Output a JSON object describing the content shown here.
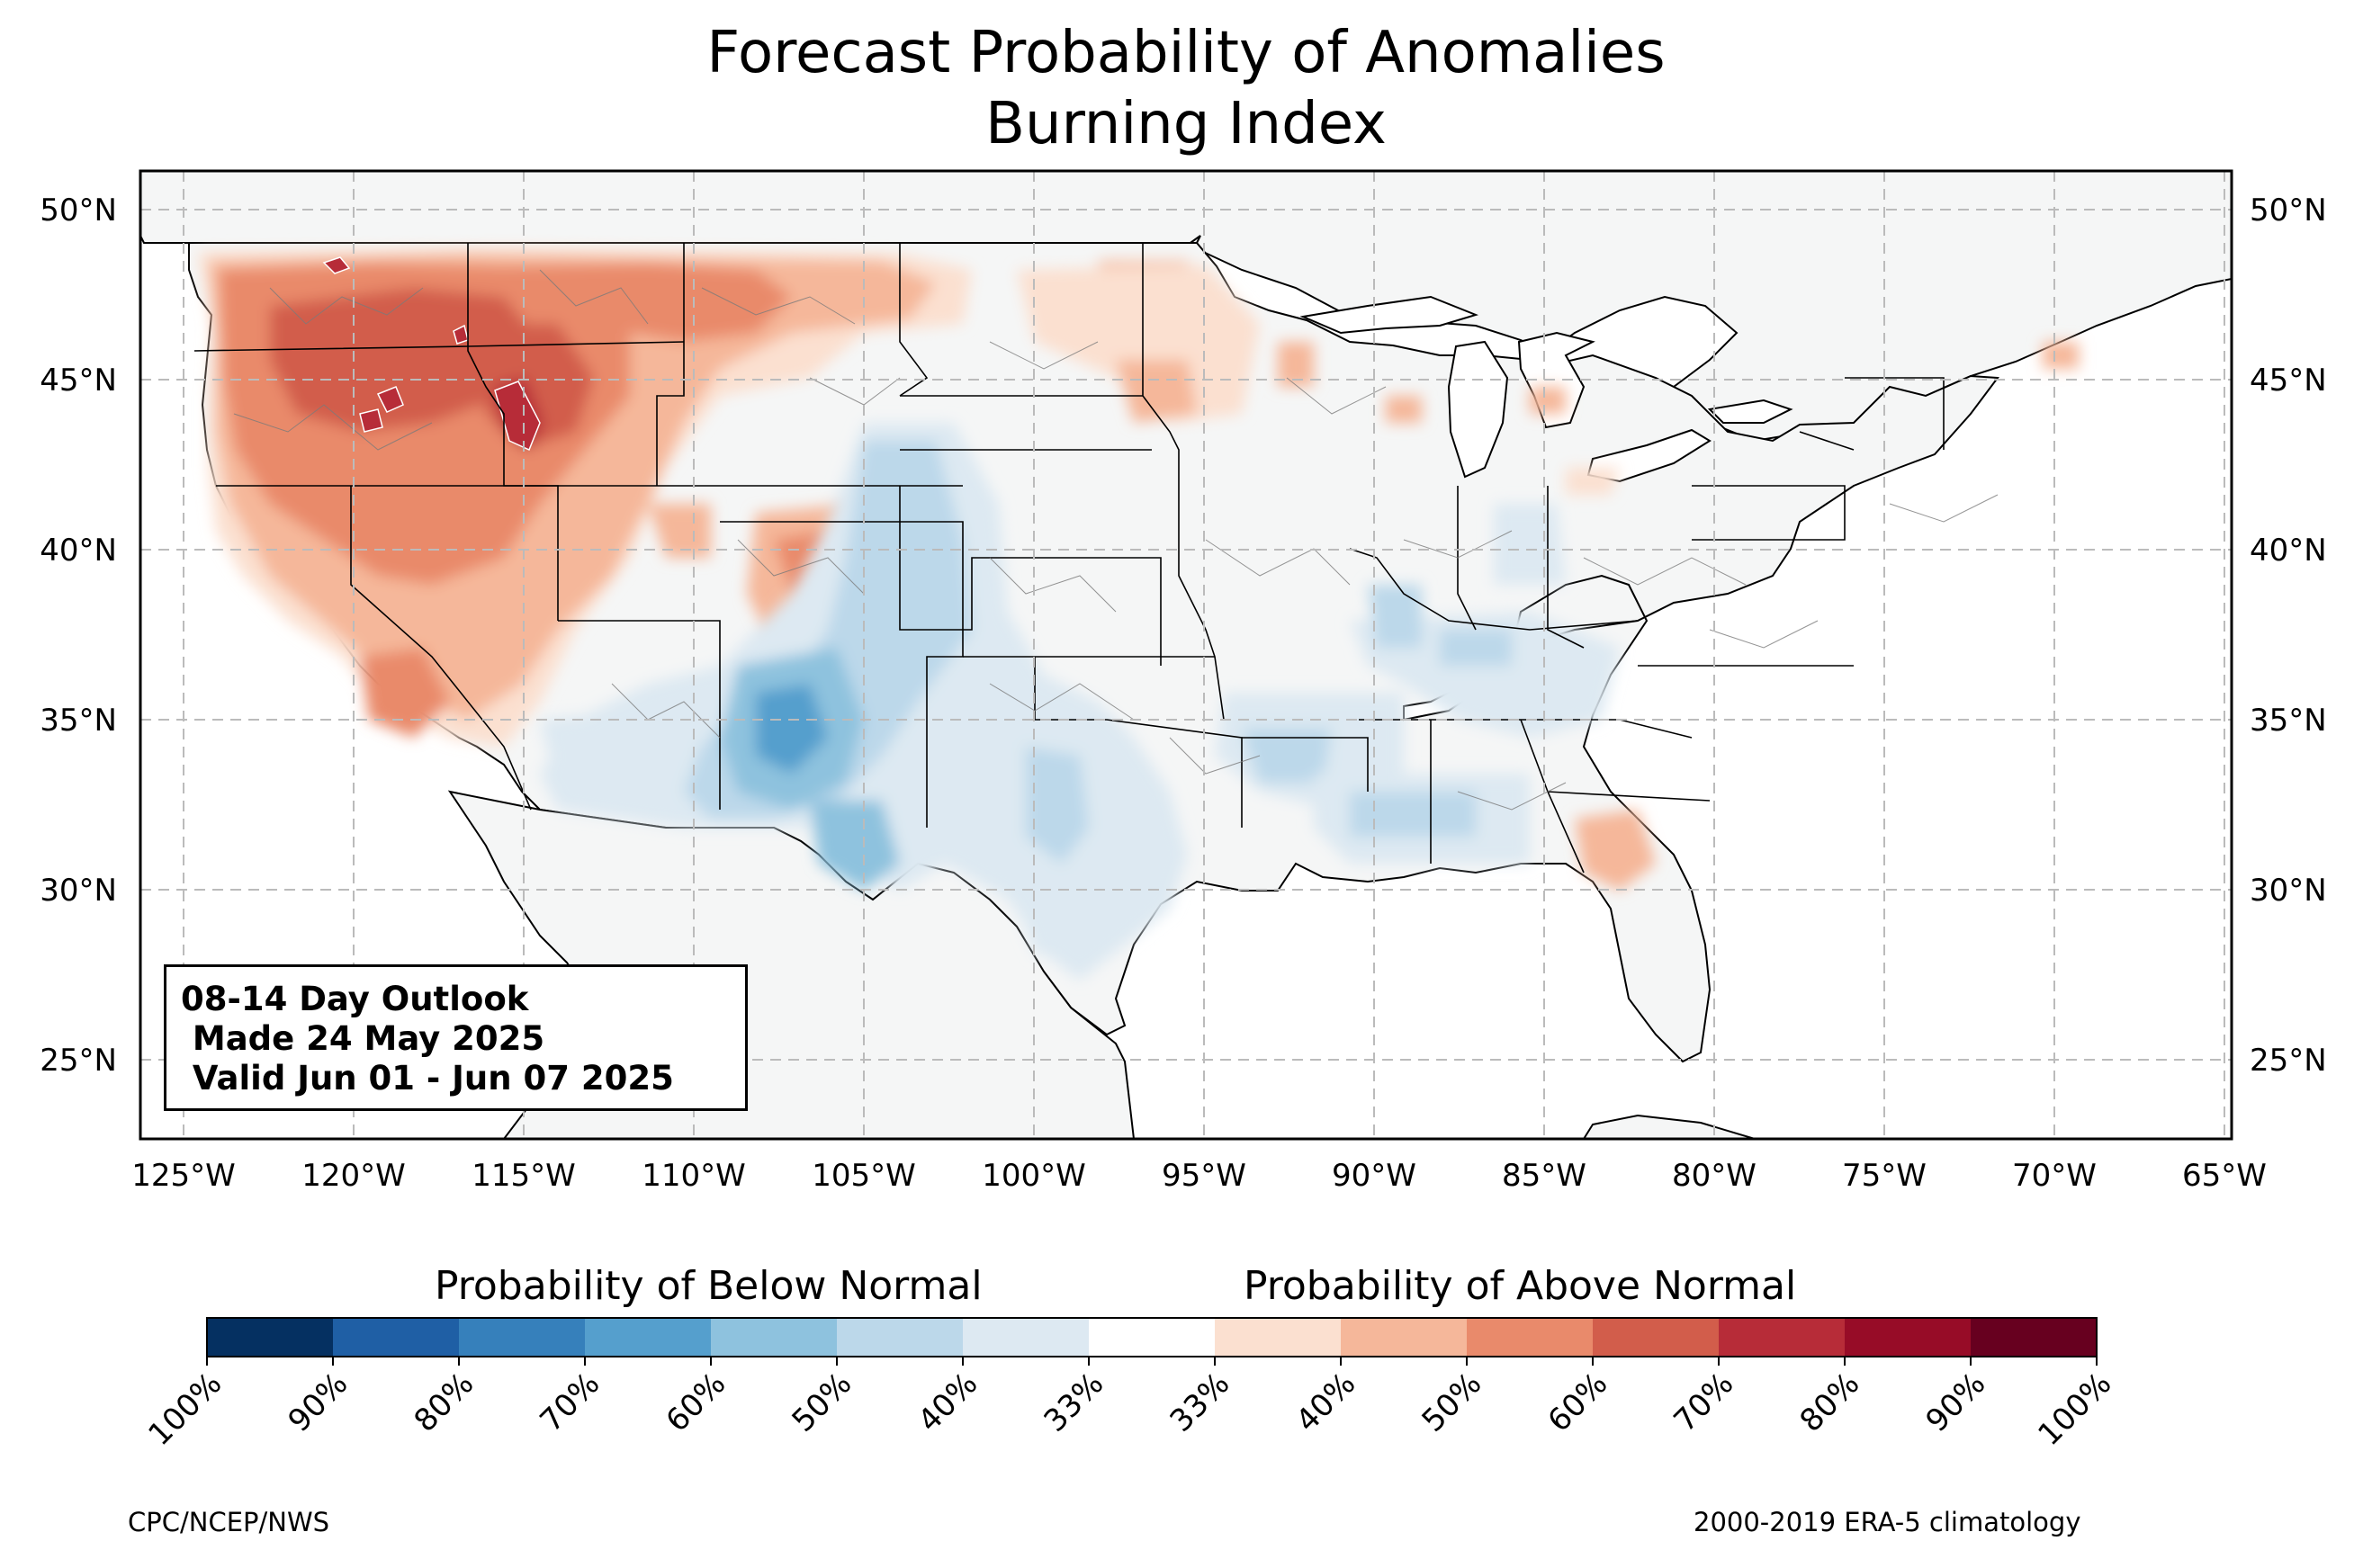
{
  "title": {
    "line1": "Forecast Probability of Anomalies",
    "line2": "Burning Index"
  },
  "outlook": {
    "line1": "08-14 Day Outlook",
    "line2": " Made 24 May 2025",
    "line3": " Valid Jun 01 - Jun 07 2025"
  },
  "axes": {
    "lat_labels": [
      "50°N",
      "45°N",
      "40°N",
      "35°N",
      "30°N",
      "25°N"
    ],
    "lon_labels": [
      "125°W",
      "120°W",
      "115°W",
      "110°W",
      "105°W",
      "100°W",
      "95°W",
      "90°W",
      "85°W",
      "80°W",
      "75°W",
      "70°W",
      "65°W"
    ],
    "lon_range": [
      -126.25,
      -64.9
    ],
    "lat_range": [
      22.8,
      51.3
    ],
    "grid": "dashed"
  },
  "colorbar": {
    "below_title": "Probability of Below Normal",
    "above_title": "Probability of Above Normal",
    "tick_labels": [
      "100%",
      "90%",
      "80%",
      "70%",
      "60%",
      "50%",
      "40%",
      "33%",
      "33%",
      "40%",
      "50%",
      "60%",
      "70%",
      "80%",
      "90%",
      "100%"
    ],
    "colors": [
      "#053061",
      "#1f5fa5",
      "#3680bb",
      "#559fcd",
      "#8ec2de",
      "#bcd8ea",
      "#dde9f2",
      "#ffffff",
      "#fbe0d0",
      "#f5b79a",
      "#e98a6b",
      "#d25d4b",
      "#b72c38",
      "#970c27",
      "#67001f"
    ]
  },
  "map": {
    "land_color": "#f5f6f6",
    "ocean_color": "#ffffff",
    "above_regions": [
      {
        "name": "Pacific Northwest",
        "level": 3
      },
      {
        "name": "Oregon / Nevada",
        "level": 4
      },
      {
        "name": "Idaho / Montana",
        "level": 3
      },
      {
        "name": "Northern Rockies core",
        "level": 6
      },
      {
        "name": "California",
        "level": 2
      },
      {
        "name": "Southern California",
        "level": 3
      },
      {
        "name": "Northern Plains",
        "level": 2
      },
      {
        "name": "Colorado",
        "level": 2
      },
      {
        "name": "Georgia / Florida",
        "level": 2
      },
      {
        "name": "Upper Midwest",
        "level": 1
      }
    ],
    "below_regions": [
      {
        "name": "Southwest",
        "level": 2
      },
      {
        "name": "Arizona / New Mexico core",
        "level": 4
      },
      {
        "name": "Rockies",
        "level": 2
      },
      {
        "name": "Texas",
        "level": 2
      },
      {
        "name": "Lower Mississippi Valley",
        "level": 2
      },
      {
        "name": "Ohio Valley",
        "level": 2
      }
    ]
  },
  "footer": {
    "left": "CPC/NCEP/NWS",
    "right": "2000-2019 ERA-5 climatology"
  }
}
